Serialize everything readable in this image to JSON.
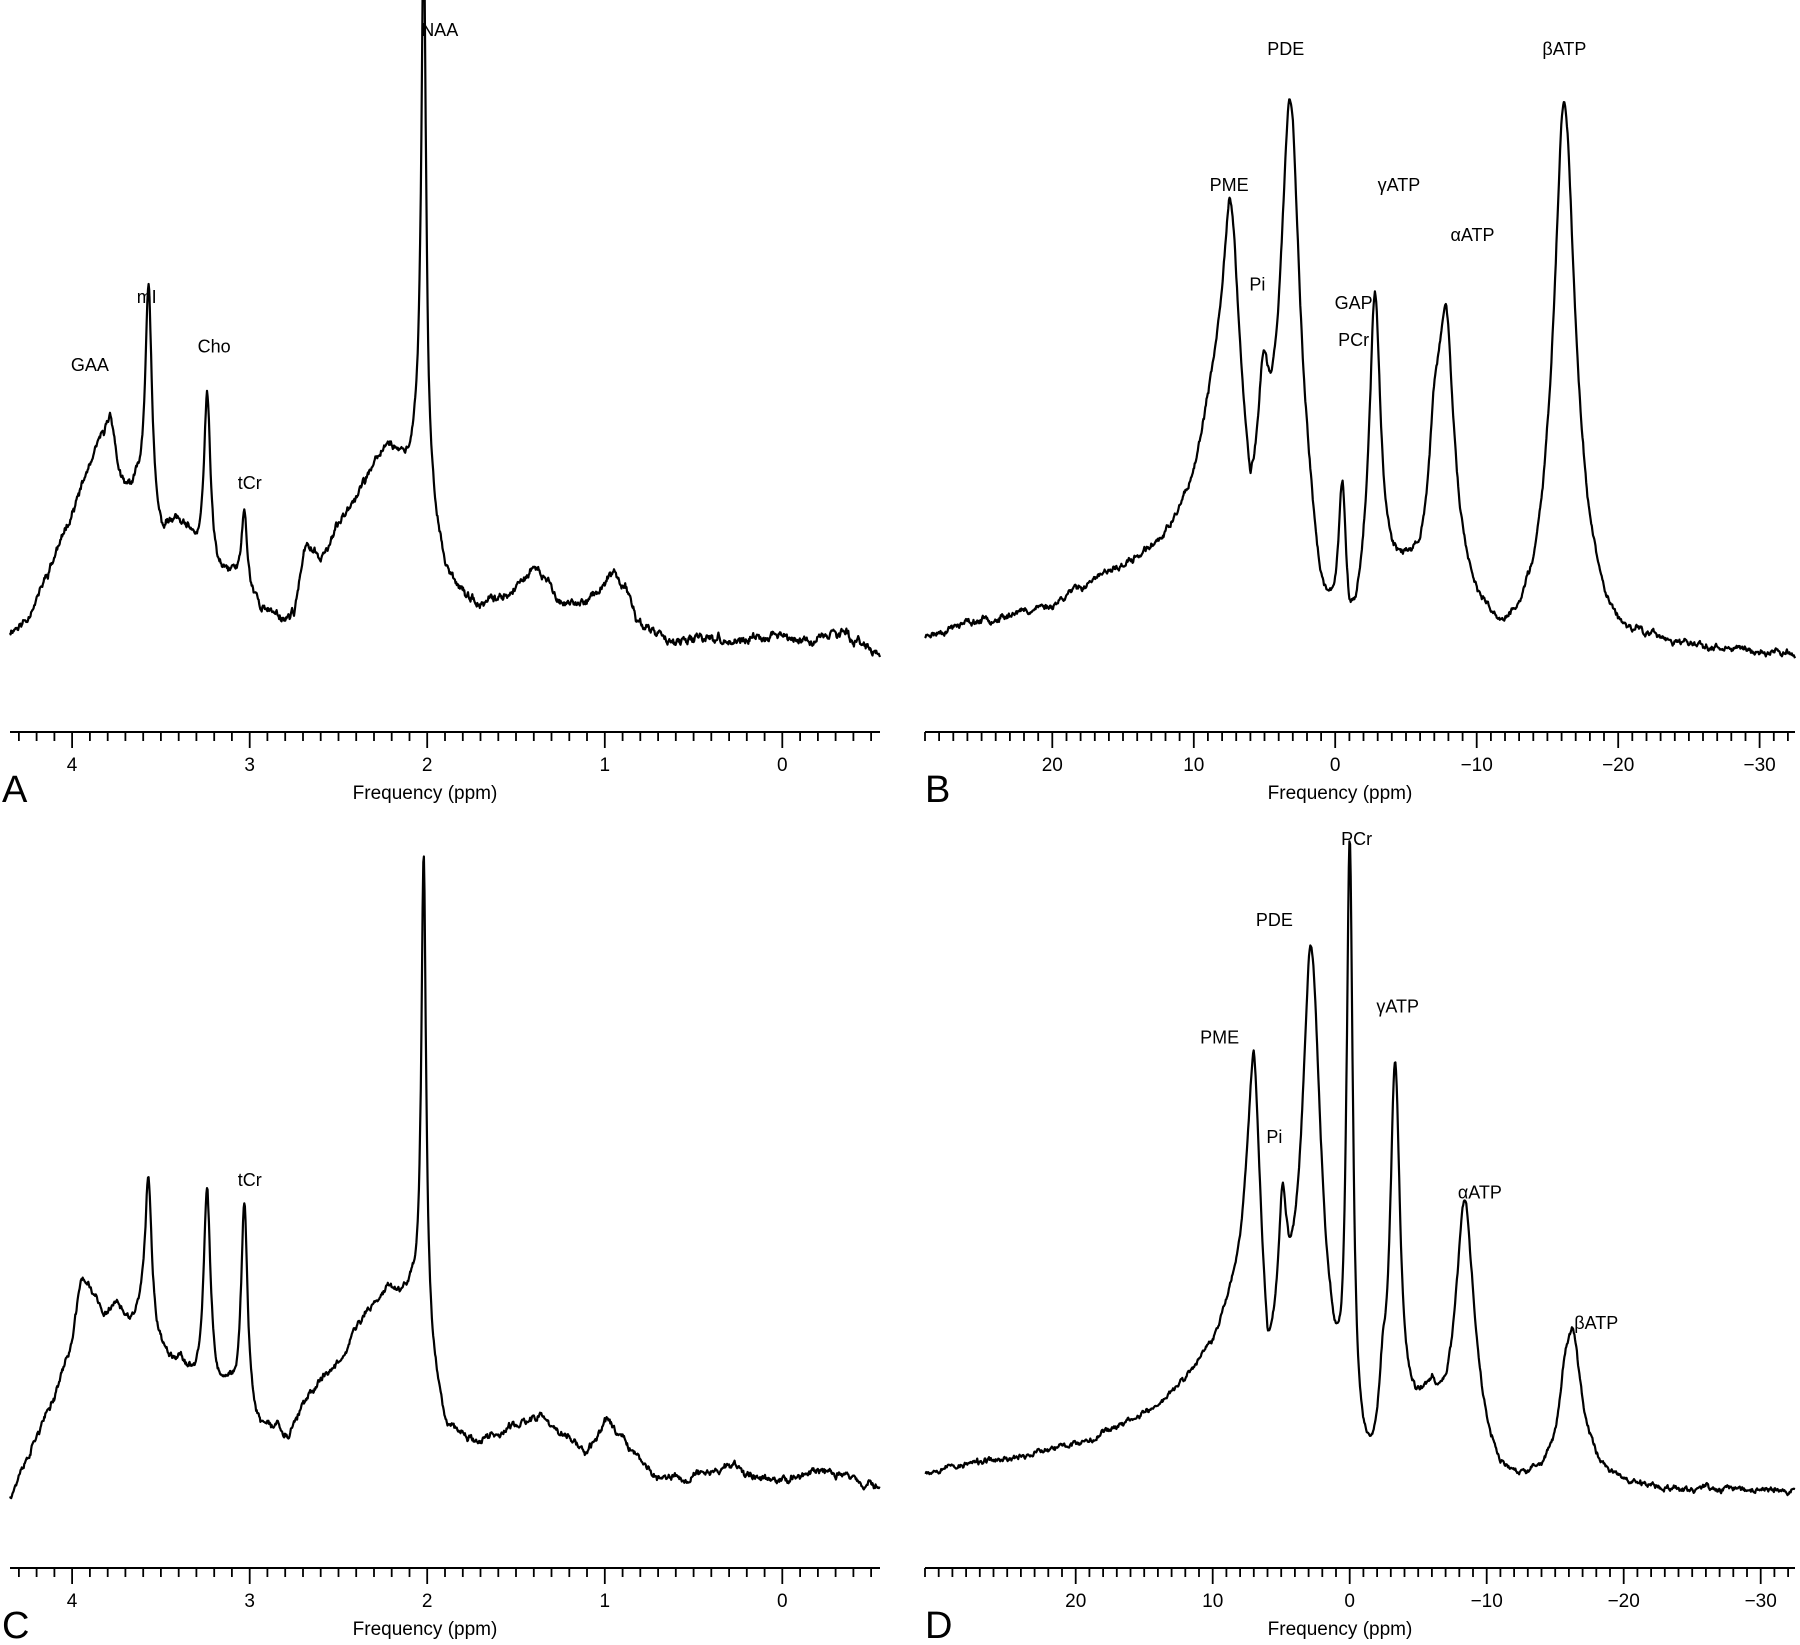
{
  "chart_data": [
    {
      "panel": "A",
      "type": "line",
      "xlabel": "Frequency (ppm)",
      "xlim": [
        4.35,
        -0.55
      ],
      "major_ticks": [
        4,
        3,
        2,
        1,
        0
      ],
      "tick_labels": [
        "4",
        "3",
        "2",
        "1",
        "0"
      ],
      "minor_step": 0.1,
      "ylim": [
        0,
        100
      ],
      "peak_labels": [
        {
          "text": "GAA",
          "x": 3.9,
          "y": 45
        },
        {
          "text": "mI",
          "x": 3.58,
          "y": 56
        },
        {
          "text": "Cho",
          "x": 3.2,
          "y": 48
        },
        {
          "text": "tCr",
          "x": 3.0,
          "y": 26
        },
        {
          "text": "NAA",
          "x": 1.93,
          "y": 99
        }
      ],
      "baseline": [
        [
          4.35,
          3
        ],
        [
          4.25,
          5
        ],
        [
          4.1,
          15
        ],
        [
          4.0,
          22
        ],
        [
          3.9,
          29
        ],
        [
          3.85,
          32
        ],
        [
          3.8,
          31
        ],
        [
          3.75,
          26
        ],
        [
          3.7,
          24
        ],
        [
          3.62,
          25
        ],
        [
          3.5,
          17
        ],
        [
          3.42,
          20
        ],
        [
          3.35,
          18
        ],
        [
          3.28,
          14
        ],
        [
          3.15,
          11
        ],
        [
          3.1,
          12
        ],
        [
          3.02,
          9
        ],
        [
          2.95,
          7
        ],
        [
          2.9,
          6
        ],
        [
          2.8,
          5
        ],
        [
          2.75,
          6
        ],
        [
          2.68,
          17
        ],
        [
          2.6,
          15
        ],
        [
          2.5,
          20
        ],
        [
          2.42,
          24
        ],
        [
          2.35,
          27
        ],
        [
          2.3,
          30
        ],
        [
          2.22,
          33
        ],
        [
          2.15,
          31
        ],
        [
          2.1,
          30
        ],
        [
          2.05,
          32
        ],
        [
          1.96,
          20
        ],
        [
          1.9,
          13
        ],
        [
          1.8,
          9
        ],
        [
          1.72,
          7
        ],
        [
          1.6,
          8
        ],
        [
          1.5,
          10
        ],
        [
          1.42,
          13
        ],
        [
          1.35,
          12
        ],
        [
          1.25,
          8
        ],
        [
          1.15,
          7
        ],
        [
          1.05,
          9
        ],
        [
          0.95,
          12
        ],
        [
          0.88,
          10
        ],
        [
          0.82,
          5
        ],
        [
          0.75,
          3
        ],
        [
          0.65,
          2
        ],
        [
          0.55,
          1
        ],
        [
          0.4,
          2
        ],
        [
          0.25,
          1
        ],
        [
          0.1,
          2
        ],
        [
          0.0,
          2
        ],
        [
          -0.15,
          1
        ],
        [
          -0.3,
          3
        ],
        [
          -0.45,
          1
        ],
        [
          -0.55,
          -1
        ]
      ],
      "peaks": [
        [
          3.78,
          8,
          0.035
        ],
        [
          3.57,
          38,
          0.022
        ],
        [
          3.24,
          28,
          0.022
        ],
        [
          3.03,
          13,
          0.018
        ],
        [
          2.02,
          88,
          0.016
        ]
      ],
      "noise": {
        "amp": 1.5,
        "seed": 11
      }
    },
    {
      "panel": "B",
      "type": "line",
      "xlabel": "Frequency (ppm)",
      "xlim": [
        29,
        -32.5
      ],
      "major_ticks": [
        20,
        10,
        0,
        -10,
        -20,
        -30
      ],
      "tick_labels": [
        "20",
        "10",
        "0",
        "−10",
        "−20",
        "−30"
      ],
      "minor_step": 1,
      "ylim": [
        0,
        100
      ],
      "peak_labels": [
        {
          "text": "PME",
          "x": 7.5,
          "y": 74
        },
        {
          "text": "PDE",
          "x": 3.5,
          "y": 96
        },
        {
          "text": "Pi",
          "x": 5.5,
          "y": 58
        },
        {
          "text": "GAP",
          "x": -1.3,
          "y": 55
        },
        {
          "text": "PCr",
          "x": -1.3,
          "y": 49
        },
        {
          "text": "γATP",
          "x": -4.5,
          "y": 74
        },
        {
          "text": "αATP",
          "x": -9.7,
          "y": 66
        },
        {
          "text": "βATP",
          "x": -16.2,
          "y": 96
        }
      ],
      "baseline": [
        [
          29,
          2
        ],
        [
          26,
          4
        ],
        [
          22,
          6
        ],
        [
          20,
          7
        ],
        [
          18,
          10
        ],
        [
          16,
          12
        ],
        [
          14,
          14
        ],
        [
          12,
          18
        ],
        [
          11,
          21
        ],
        [
          10,
          26
        ],
        [
          9,
          36
        ],
        [
          8,
          44
        ],
        [
          7.5,
          47
        ],
        [
          6,
          14
        ],
        [
          5,
          18
        ],
        [
          4,
          20
        ],
        [
          3,
          23
        ],
        [
          2,
          15
        ],
        [
          1,
          2
        ],
        [
          0,
          -2
        ],
        [
          -1,
          -5
        ],
        [
          -2,
          2
        ],
        [
          -3,
          5
        ],
        [
          -4,
          8
        ],
        [
          -5,
          10
        ],
        [
          -6,
          9
        ],
        [
          -7,
          14
        ],
        [
          -8,
          15
        ],
        [
          -9,
          10
        ],
        [
          -10,
          5
        ],
        [
          -11,
          2
        ],
        [
          -12,
          1
        ],
        [
          -13,
          2
        ],
        [
          -14,
          4
        ],
        [
          -15,
          9
        ],
        [
          -16,
          15
        ],
        [
          -17,
          12
        ],
        [
          -18,
          7
        ],
        [
          -19,
          3
        ],
        [
          -20,
          1
        ],
        [
          -22,
          1
        ],
        [
          -25,
          0
        ],
        [
          -28,
          0
        ],
        [
          -32.5,
          -1
        ]
      ],
      "peaks": [
        [
          7.3,
          25,
          0.7
        ],
        [
          5.1,
          18,
          0.45
        ],
        [
          3.2,
          64,
          0.8
        ],
        [
          -0.5,
          25,
          0.32
        ],
        [
          -2.8,
          50,
          0.5
        ],
        [
          -7,
          13,
          0.5
        ],
        [
          -7.8,
          35,
          0.65
        ],
        [
          -16.2,
          73,
          0.9
        ]
      ],
      "noise": {
        "amp": 1.2,
        "seed": 23
      }
    },
    {
      "panel": "C",
      "type": "line",
      "xlabel": "Frequency (ppm)",
      "xlim": [
        4.35,
        -0.55
      ],
      "major_ticks": [
        4,
        3,
        2,
        1,
        0
      ],
      "tick_labels": [
        "4",
        "3",
        "2",
        "1",
        "0"
      ],
      "minor_step": 0.1,
      "ylim": [
        0,
        100
      ],
      "peak_labels": [
        {
          "text": "tCr",
          "x": 3.0,
          "y": 49
        }
      ],
      "baseline": [
        [
          4.35,
          -1
        ],
        [
          4.25,
          5
        ],
        [
          4.1,
          15
        ],
        [
          4.0,
          24
        ],
        [
          3.95,
          34
        ],
        [
          3.9,
          33
        ],
        [
          3.82,
          28
        ],
        [
          3.75,
          30
        ],
        [
          3.68,
          26
        ],
        [
          3.6,
          28
        ],
        [
          3.5,
          22
        ],
        [
          3.42,
          21
        ],
        [
          3.35,
          19
        ],
        [
          3.3,
          17
        ],
        [
          3.18,
          15
        ],
        [
          3.1,
          15
        ],
        [
          2.95,
          9
        ],
        [
          2.85,
          10
        ],
        [
          2.78,
          8
        ],
        [
          2.7,
          13
        ],
        [
          2.6,
          18
        ],
        [
          2.52,
          20
        ],
        [
          2.45,
          23
        ],
        [
          2.38,
          27
        ],
        [
          2.3,
          30
        ],
        [
          2.22,
          33
        ],
        [
          2.15,
          31
        ],
        [
          2.08,
          32
        ],
        [
          1.96,
          18
        ],
        [
          1.9,
          11
        ],
        [
          1.8,
          9
        ],
        [
          1.7,
          8
        ],
        [
          1.6,
          9
        ],
        [
          1.45,
          11
        ],
        [
          1.35,
          12
        ],
        [
          1.25,
          9
        ],
        [
          1.1,
          6
        ],
        [
          1.0,
          11
        ],
        [
          0.9,
          9
        ],
        [
          0.8,
          5
        ],
        [
          0.7,
          2
        ],
        [
          0.55,
          2
        ],
        [
          0.3,
          4
        ],
        [
          0.15,
          2
        ],
        [
          0.0,
          2
        ],
        [
          -0.2,
          3
        ],
        [
          -0.4,
          2
        ],
        [
          -0.55,
          0
        ]
      ],
      "peaks": [
        [
          3.57,
          24,
          0.022
        ],
        [
          3.24,
          32,
          0.022
        ],
        [
          3.03,
          34,
          0.022
        ],
        [
          2.02,
          78,
          0.016
        ]
      ],
      "noise": {
        "amp": 1.3,
        "seed": 37
      }
    },
    {
      "panel": "D",
      "type": "line",
      "xlabel": "Frequency (ppm)",
      "xlim": [
        31,
        -32.5
      ],
      "major_ticks": [
        20,
        10,
        0,
        -10,
        -20,
        -30
      ],
      "tick_labels": [
        "20",
        "10",
        "0",
        "−10",
        "−20",
        "−30"
      ],
      "minor_step": 1,
      "ylim": [
        0,
        100
      ],
      "peak_labels": [
        {
          "text": "PME",
          "x": 9.5,
          "y": 72
        },
        {
          "text": "PDE",
          "x": 5.5,
          "y": 91
        },
        {
          "text": "Pi",
          "x": 5.5,
          "y": 56
        },
        {
          "text": "PCr",
          "x": -0.5,
          "y": 104
        },
        {
          "text": "γATP",
          "x": -3.5,
          "y": 77
        },
        {
          "text": "αATP",
          "x": -9.5,
          "y": 47
        },
        {
          "text": "βATP",
          "x": -18,
          "y": 26
        }
      ],
      "baseline": [
        [
          31,
          3
        ],
        [
          28,
          4
        ],
        [
          25,
          5
        ],
        [
          22,
          6
        ],
        [
          19,
          8
        ],
        [
          16,
          11
        ],
        [
          14,
          13
        ],
        [
          12,
          17
        ],
        [
          10,
          22
        ],
        [
          9,
          27
        ],
        [
          8,
          32
        ],
        [
          7,
          38
        ],
        [
          6,
          12
        ],
        [
          5,
          19
        ],
        [
          4.2,
          20
        ],
        [
          3,
          23
        ],
        [
          2,
          17
        ],
        [
          1,
          8
        ],
        [
          0.5,
          3
        ],
        [
          -0.5,
          -1
        ],
        [
          -1.5,
          -2
        ],
        [
          -2.5,
          -1
        ],
        [
          -4,
          6
        ],
        [
          -5,
          10
        ],
        [
          -6,
          13
        ],
        [
          -7,
          10
        ],
        [
          -8,
          13
        ],
        [
          -9,
          12
        ],
        [
          -10,
          6
        ],
        [
          -11,
          2
        ],
        [
          -12,
          1
        ],
        [
          -13,
          1
        ],
        [
          -14,
          2
        ],
        [
          -15,
          4
        ],
        [
          -16,
          7
        ],
        [
          -17,
          5
        ],
        [
          -18,
          3
        ],
        [
          -19,
          2
        ],
        [
          -20,
          1
        ],
        [
          -24,
          0
        ],
        [
          -28,
          0
        ],
        [
          -32.5,
          0
        ]
      ],
      "peaks": [
        [
          7.0,
          30,
          0.6
        ],
        [
          4.9,
          19,
          0.35
        ],
        [
          2.8,
          63,
          0.8
        ],
        [
          0.0,
          98,
          0.28
        ],
        [
          -2.4,
          10,
          0.3
        ],
        [
          -3.3,
          63,
          0.45
        ],
        [
          -8.4,
          33,
          0.7
        ],
        [
          -15.6,
          5,
          0.4
        ],
        [
          -16.3,
          18,
          0.7
        ]
      ],
      "noise": {
        "amp": 1.0,
        "seed": 53
      }
    }
  ]
}
